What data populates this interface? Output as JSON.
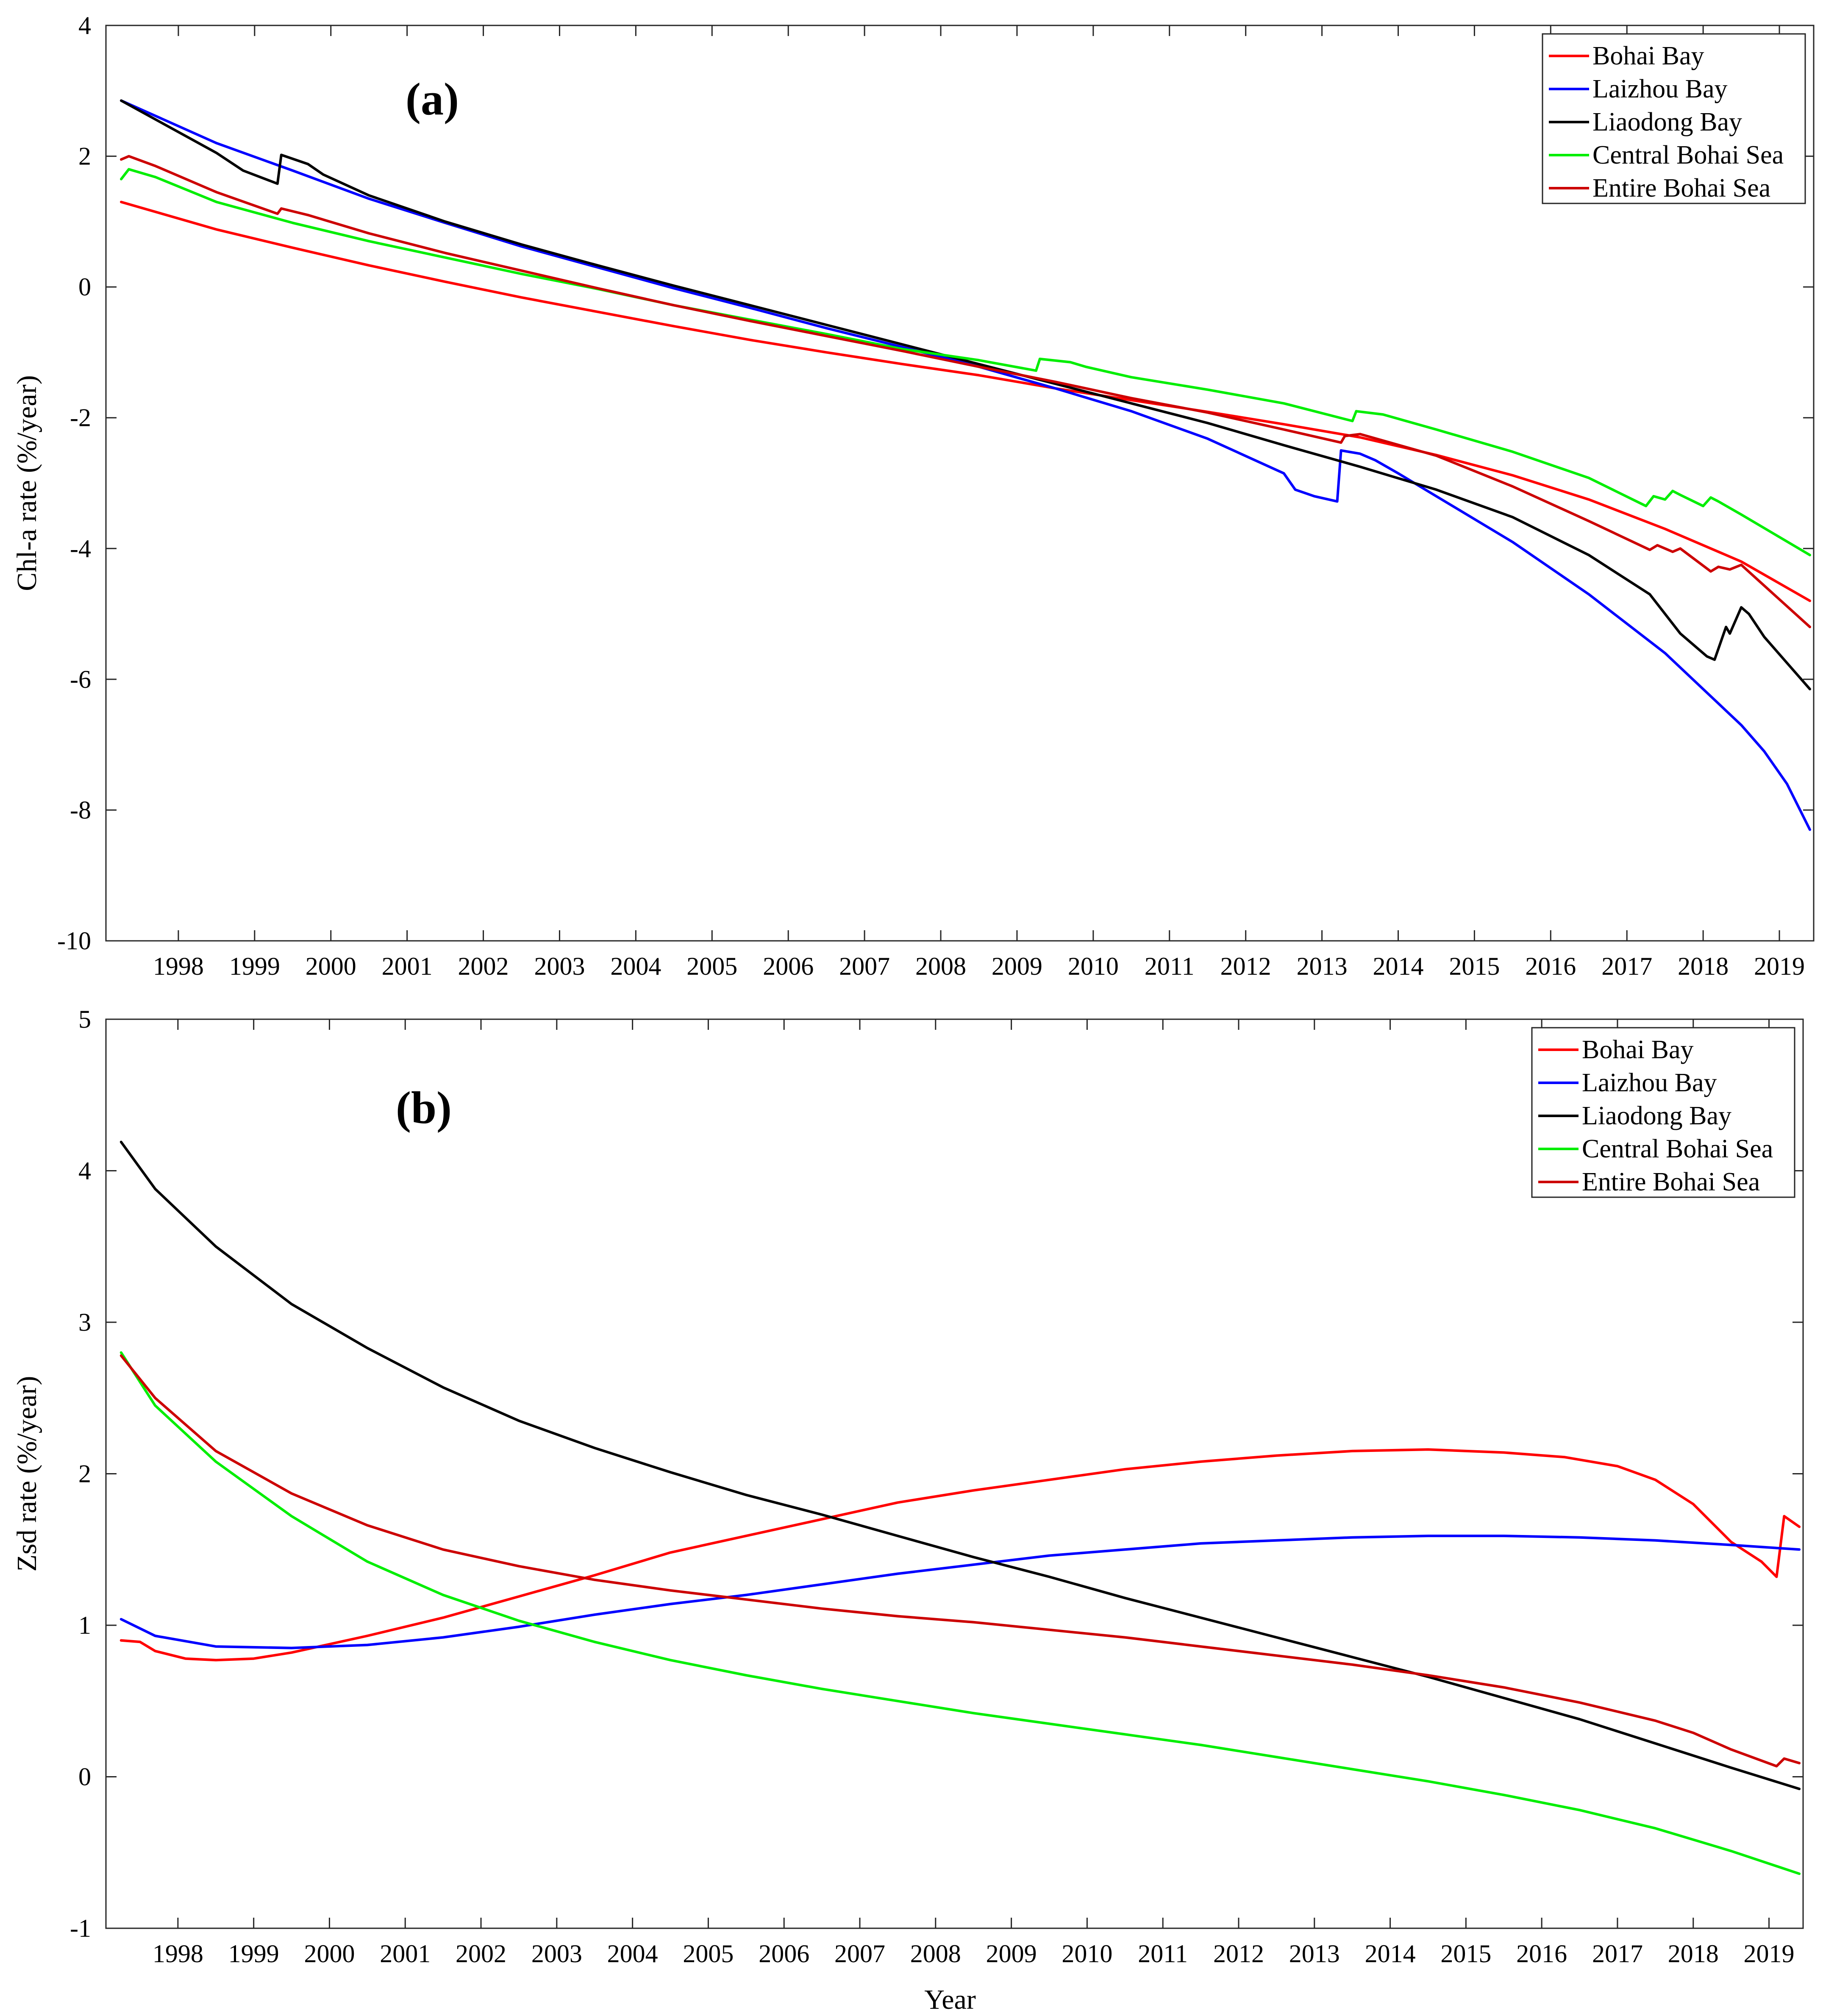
{
  "figure": {
    "xlabel": "Year"
  },
  "chart_data": [
    {
      "id": "a",
      "type": "line",
      "panel_label": "(a)",
      "title": "",
      "xlabel": "",
      "ylabel": "Chl-a rate (%/year)",
      "xlim": [
        1997.55,
        2019.95
      ],
      "ylim": [
        -10,
        4
      ],
      "yticks": [
        -10,
        -8,
        -6,
        -4,
        -2,
        0,
        2,
        4
      ],
      "xtick_labels": [
        "1998",
        "1999",
        "2000",
        "2001",
        "2002",
        "2003",
        "2004",
        "2005",
        "2006",
        "2007",
        "2008",
        "2009",
        "2010",
        "2011",
        "2012",
        "2013",
        "2014",
        "2015",
        "2016",
        "2017",
        "2018",
        "2019"
      ],
      "legend": "top-right",
      "series": [
        {
          "name": "Bohai Bay",
          "color": "#ff0000",
          "x": [
            1997.75,
            1999,
            2000,
            2001,
            2002,
            2003,
            2004,
            2005,
            2006,
            2007,
            2008,
            2009,
            2010,
            2011,
            2012,
            2013,
            2014,
            2015,
            2016,
            2017,
            2018,
            2019,
            2019.9
          ],
          "y": [
            1.3,
            0.88,
            0.6,
            0.33,
            0.08,
            -0.16,
            -0.38,
            -0.6,
            -0.81,
            -1.0,
            -1.18,
            -1.35,
            -1.55,
            -1.73,
            -1.91,
            -2.1,
            -2.3,
            -2.57,
            -2.88,
            -3.25,
            -3.7,
            -4.2,
            -4.8
          ]
        },
        {
          "name": "Laizhou Bay",
          "color": "#0000ff",
          "x": [
            1997.75,
            1999,
            2000,
            2001,
            2002,
            2003,
            2004,
            2005,
            2006,
            2007,
            2008,
            2009,
            2010,
            2011,
            2012,
            2013,
            2013.15,
            2013.4,
            2013.7,
            2013.75,
            2014.0,
            2014.2,
            2014.5,
            2015,
            2016,
            2017,
            2018,
            2019,
            2019.3,
            2019.6,
            2019.9
          ],
          "y": [
            2.85,
            2.2,
            1.78,
            1.35,
            0.98,
            0.62,
            0.3,
            -0.02,
            -0.32,
            -0.63,
            -0.92,
            -1.22,
            -1.55,
            -1.9,
            -2.32,
            -2.85,
            -3.1,
            -3.2,
            -3.28,
            -2.5,
            -2.55,
            -2.65,
            -2.85,
            -3.2,
            -3.9,
            -4.7,
            -5.6,
            -6.7,
            -7.1,
            -7.6,
            -8.3
          ]
        },
        {
          "name": "Liaodong Bay",
          "color": "#000000",
          "x": [
            1997.75,
            1999,
            1999.35,
            1999.8,
            1999.85,
            2000.2,
            2000.4,
            2001,
            2002,
            2003,
            2004,
            2005,
            2006,
            2007,
            2008,
            2009,
            2010,
            2011,
            2012,
            2013,
            2014,
            2015,
            2016,
            2017,
            2017.8,
            2018.2,
            2018.4,
            2018.55,
            2018.65,
            2018.8,
            2018.85,
            2019.0,
            2019.1,
            2019.3,
            2019.6,
            2019.9
          ],
          "y": [
            2.85,
            2.05,
            1.78,
            1.58,
            2.02,
            1.88,
            1.72,
            1.4,
            1.0,
            0.65,
            0.33,
            0.02,
            -0.28,
            -0.58,
            -0.88,
            -1.18,
            -1.48,
            -1.78,
            -2.08,
            -2.42,
            -2.75,
            -3.1,
            -3.52,
            -4.1,
            -4.7,
            -5.3,
            -5.5,
            -5.65,
            -5.7,
            -5.2,
            -5.3,
            -4.9,
            -5.0,
            -5.35,
            -5.75,
            -6.15
          ]
        },
        {
          "name": "Central Bohai Sea",
          "color": "#00ee00",
          "x": [
            1997.75,
            1997.85,
            1998.2,
            1999,
            2000,
            2001,
            2002,
            2003,
            2004,
            2005,
            2006,
            2007,
            2008,
            2009,
            2009.75,
            2009.8,
            2010.2,
            2010.4,
            2011,
            2012,
            2013,
            2013.9,
            2013.95,
            2014.3,
            2015,
            2016,
            2017,
            2017.75,
            2017.85,
            2018.0,
            2018.1,
            2018.2,
            2018.5,
            2018.6,
            2018.7,
            2019,
            2019.9
          ],
          "y": [
            1.65,
            1.8,
            1.68,
            1.3,
            0.98,
            0.7,
            0.45,
            0.2,
            -0.03,
            -0.28,
            -0.5,
            -0.72,
            -0.95,
            -1.12,
            -1.28,
            -1.1,
            -1.15,
            -1.22,
            -1.38,
            -1.57,
            -1.78,
            -2.05,
            -1.9,
            -1.95,
            -2.18,
            -2.52,
            -2.92,
            -3.35,
            -3.2,
            -3.25,
            -3.12,
            -3.18,
            -3.35,
            -3.22,
            -3.28,
            -3.48,
            -4.1
          ]
        },
        {
          "name": "Entire Bohai Sea",
          "color": "#cc0000",
          "x": [
            1997.75,
            1997.85,
            1998.2,
            1999,
            1999.8,
            1999.85,
            2000.2,
            2001,
            2002,
            2003,
            2004,
            2005,
            2006,
            2007,
            2008,
            2009,
            2010,
            2011,
            2012,
            2013,
            2013.75,
            2013.8,
            2014.0,
            2015,
            2016,
            2017,
            2017.8,
            2017.9,
            2018.1,
            2018.2,
            2018.6,
            2018.7,
            2018.85,
            2019.0,
            2019.9
          ],
          "y": [
            1.95,
            2.0,
            1.85,
            1.45,
            1.12,
            1.2,
            1.1,
            0.82,
            0.52,
            0.25,
            -0.02,
            -0.28,
            -0.52,
            -0.75,
            -0.98,
            -1.22,
            -1.45,
            -1.7,
            -1.92,
            -2.18,
            -2.38,
            -2.28,
            -2.25,
            -2.58,
            -3.05,
            -3.58,
            -4.02,
            -3.95,
            -4.05,
            -4.0,
            -4.35,
            -4.28,
            -4.32,
            -4.25,
            -5.2
          ]
        }
      ]
    },
    {
      "id": "b",
      "type": "line",
      "panel_label": "(b)",
      "title": "",
      "xlabel": "Year",
      "ylabel": "Zsd rate (%/year)",
      "xlim": [
        1997.55,
        2019.95
      ],
      "ylim": [
        -1,
        5
      ],
      "yticks": [
        -1,
        0,
        1,
        2,
        3,
        4,
        5
      ],
      "xtick_labels": [
        "1998",
        "1999",
        "2000",
        "2001",
        "2002",
        "2003",
        "2004",
        "2005",
        "2006",
        "2007",
        "2008",
        "2009",
        "2010",
        "2011",
        "2012",
        "2013",
        "2014",
        "2015",
        "2016",
        "2017",
        "2018",
        "2019"
      ],
      "legend": "top-right",
      "series": [
        {
          "name": "Bohai Bay",
          "color": "#ff0000",
          "x": [
            1997.75,
            1998.0,
            1998.2,
            1998.6,
            1999,
            1999.5,
            2000,
            2001,
            2002,
            2003,
            2004,
            2005,
            2006,
            2007,
            2008,
            2009,
            2010,
            2011,
            2012,
            2013,
            2014,
            2015,
            2016,
            2016.8,
            2017.5,
            2018,
            2018.5,
            2019,
            2019.4,
            2019.6,
            2019.7,
            2019.9
          ],
          "y": [
            0.9,
            0.89,
            0.83,
            0.78,
            0.77,
            0.78,
            0.82,
            0.93,
            1.05,
            1.19,
            1.33,
            1.48,
            1.59,
            1.7,
            1.81,
            1.89,
            1.96,
            2.03,
            2.08,
            2.12,
            2.15,
            2.16,
            2.14,
            2.11,
            2.05,
            1.96,
            1.8,
            1.55,
            1.42,
            1.32,
            1.72,
            1.65
          ]
        },
        {
          "name": "Laizhou Bay",
          "color": "#0000ff",
          "x": [
            1997.75,
            1998.2,
            1999,
            2000,
            2001,
            2002,
            2003,
            2004,
            2005,
            2006,
            2007,
            2008,
            2009,
            2010,
            2011,
            2012,
            2013,
            2014,
            2015,
            2016,
            2017,
            2018,
            2019,
            2019.9
          ],
          "y": [
            1.04,
            0.93,
            0.86,
            0.85,
            0.87,
            0.92,
            0.99,
            1.07,
            1.14,
            1.2,
            1.27,
            1.34,
            1.4,
            1.46,
            1.5,
            1.54,
            1.56,
            1.58,
            1.59,
            1.59,
            1.58,
            1.56,
            1.53,
            1.5
          ]
        },
        {
          "name": "Liaodong Bay",
          "color": "#000000",
          "x": [
            1997.75,
            1998.2,
            1999,
            2000,
            2001,
            2002,
            2003,
            2004,
            2005,
            2006,
            2007,
            2008,
            2009,
            2010,
            2011,
            2012,
            2013,
            2014,
            2015,
            2016,
            2017,
            2018,
            2019,
            2019.9
          ],
          "y": [
            4.19,
            3.88,
            3.5,
            3.12,
            2.83,
            2.57,
            2.35,
            2.17,
            2.01,
            1.86,
            1.73,
            1.59,
            1.45,
            1.32,
            1.18,
            1.05,
            0.92,
            0.79,
            0.66,
            0.52,
            0.38,
            0.22,
            0.06,
            -0.08
          ]
        },
        {
          "name": "Central Bohai Sea",
          "color": "#00ee00",
          "x": [
            1997.75,
            1998.2,
            1999,
            2000,
            2001,
            2002,
            2003,
            2004,
            2005,
            2006,
            2007,
            2008,
            2009,
            2010,
            2011,
            2012,
            2013,
            2014,
            2015,
            2016,
            2017,
            2018,
            2019,
            2019.9
          ],
          "y": [
            2.8,
            2.45,
            2.08,
            1.72,
            1.42,
            1.2,
            1.03,
            0.89,
            0.77,
            0.67,
            0.58,
            0.5,
            0.42,
            0.35,
            0.28,
            0.21,
            0.13,
            0.05,
            -0.03,
            -0.12,
            -0.22,
            -0.34,
            -0.49,
            -0.64
          ]
        },
        {
          "name": "Entire Bohai Sea",
          "color": "#cc0000",
          "x": [
            1997.75,
            1998.2,
            1999,
            2000,
            2001,
            2002,
            2003,
            2004,
            2005,
            2006,
            2007,
            2008,
            2009,
            2010,
            2011,
            2012,
            2013,
            2014,
            2015,
            2016,
            2017,
            2018,
            2018.5,
            2019,
            2019.6,
            2019.7,
            2019.9
          ],
          "y": [
            2.78,
            2.5,
            2.15,
            1.87,
            1.66,
            1.5,
            1.39,
            1.3,
            1.23,
            1.17,
            1.11,
            1.06,
            1.02,
            0.97,
            0.92,
            0.86,
            0.8,
            0.74,
            0.67,
            0.59,
            0.49,
            0.37,
            0.29,
            0.18,
            0.07,
            0.12,
            0.09
          ]
        }
      ]
    }
  ]
}
